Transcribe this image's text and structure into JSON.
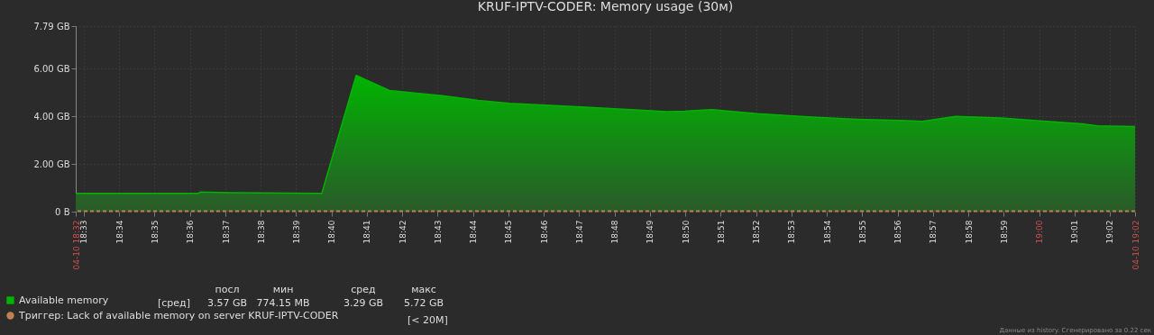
{
  "chart_data": {
    "type": "area",
    "title": "KRUF-IPTV-CODER: Memory usage (30м)",
    "x": [
      18.5462,
      18.604,
      18.6048,
      18.62,
      18.6621,
      18.6783,
      18.694,
      18.7187,
      18.7357,
      18.7505,
      18.7823,
      18.8078,
      18.8248,
      18.8333,
      18.846,
      18.8673,
      18.8928,
      18.914,
      18.9352,
      18.945,
      18.9607,
      18.982,
      18.999,
      19.0202,
      19.0273,
      19.0452
    ],
    "series": [
      {
        "name": "Available memory",
        "color": "#00b400",
        "values": [
          0.77,
          0.77,
          0.82,
          0.79,
          0.77,
          5.72,
          5.09,
          4.87,
          4.67,
          4.55,
          4.41,
          4.28,
          4.2,
          4.22,
          4.28,
          4.11,
          3.97,
          3.88,
          3.83,
          3.79,
          4.0,
          3.93,
          3.82,
          3.69,
          3.6,
          3.57
        ]
      }
    ],
    "xlim": [
      18.5462,
      19.0452
    ],
    "xticks": [
      {
        "value": 18.5462,
        "label": "04-10 18:32"
      },
      {
        "value": 18.55,
        "label": "18:33"
      },
      {
        "value": 18.5667,
        "label": "18:34"
      },
      {
        "value": 18.5833,
        "label": "18:35"
      },
      {
        "value": 18.6,
        "label": "18:36"
      },
      {
        "value": 18.6167,
        "label": "18:37"
      },
      {
        "value": 18.6333,
        "label": "18:38"
      },
      {
        "value": 18.65,
        "label": "18:39"
      },
      {
        "value": 18.6667,
        "label": "18:40"
      },
      {
        "value": 18.6833,
        "label": "18:41"
      },
      {
        "value": 18.7,
        "label": "18:42"
      },
      {
        "value": 18.7167,
        "label": "18:43"
      },
      {
        "value": 18.7333,
        "label": "18:44"
      },
      {
        "value": 18.75,
        "label": "18:45"
      },
      {
        "value": 18.7667,
        "label": "18:46"
      },
      {
        "value": 18.7833,
        "label": "18:47"
      },
      {
        "value": 18.8,
        "label": "18:48"
      },
      {
        "value": 18.8167,
        "label": "18:49"
      },
      {
        "value": 18.8333,
        "label": "18:50"
      },
      {
        "value": 18.85,
        "label": "18:51"
      },
      {
        "value": 18.8667,
        "label": "18:52"
      },
      {
        "value": 18.8833,
        "label": "18:53"
      },
      {
        "value": 18.9,
        "label": "18:54"
      },
      {
        "value": 18.9167,
        "label": "18:55"
      },
      {
        "value": 18.9333,
        "label": "18:56"
      },
      {
        "value": 18.95,
        "label": "18:57"
      },
      {
        "value": 18.9667,
        "label": "18:58"
      },
      {
        "value": 18.9833,
        "label": "18:59"
      },
      {
        "value": 19,
        "label": "19:00"
      },
      {
        "value": 19.0167,
        "label": "19:01"
      },
      {
        "value": 19.0333,
        "label": "19:02"
      },
      {
        "value": 19.0452,
        "label": "04-10 19:02"
      }
    ],
    "ylim": [
      0,
      7.79
    ],
    "yticks": [
      {
        "value": 0,
        "label": "0 B"
      },
      {
        "value": 2,
        "label": "2.00 GB"
      },
      {
        "value": 4,
        "label": "4.00 GB"
      },
      {
        "value": 6,
        "label": "6.00 GB"
      },
      {
        "value": 7.79,
        "label": "7.79 GB"
      }
    ],
    "ref_lines": [
      {
        "axis": "y",
        "value": 0.02,
        "label": "Триггер: Lack of available memory on server KRUF-IPTV-CODER",
        "color": "#c08050",
        "line_style": "dashed"
      }
    ],
    "annotations": [
      "[сред]",
      "посл",
      "мин",
      "сред",
      "макс",
      "3.57 GB",
      "774.15 MB",
      "3.29 GB",
      "5.72 GB",
      "[< 20M]",
      "Данные из history. Сгенерировано за 0.22 сек"
    ],
    "grid": true,
    "legend": "bottom left",
    "marker": "none",
    "line_style": "solid"
  }
}
